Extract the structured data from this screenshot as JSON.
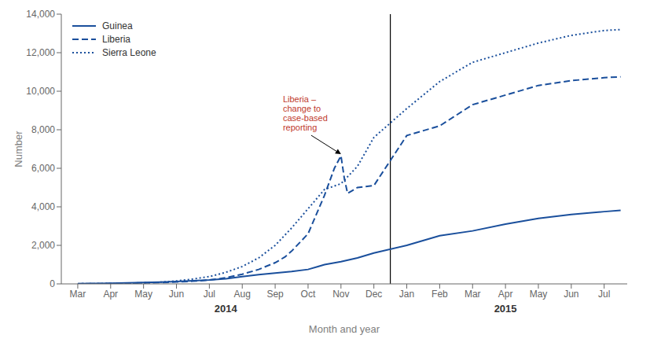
{
  "chart_data": {
    "type": "line",
    "x_label": "Month and year",
    "y_label": "Number",
    "series": [
      {
        "name": "Guinea",
        "color": "#1a4f9c",
        "line_style": "solid",
        "x": [
          0,
          0.5,
          1,
          1.5,
          2,
          2.5,
          3,
          3.5,
          4,
          4.5,
          5,
          5.5,
          6,
          6.5,
          7,
          7.3,
          7.5,
          8,
          8.5,
          9,
          10,
          11,
          12,
          13,
          14,
          15,
          16,
          16.5
        ],
        "values": [
          10,
          20,
          30,
          50,
          70,
          90,
          120,
          160,
          200,
          270,
          380,
          480,
          560,
          640,
          750,
          900,
          1000,
          1150,
          1350,
          1600,
          2000,
          2500,
          2750,
          3100,
          3400,
          3600,
          3750,
          3820
        ]
      },
      {
        "name": "Liberia",
        "color": "#1a4f9c",
        "line_style": "dashed",
        "x": [
          0,
          0.5,
          1,
          1.5,
          2,
          2.5,
          3,
          3.5,
          4,
          4.5,
          5,
          5.5,
          6,
          6.3,
          6.5,
          7,
          7.3,
          7.5,
          7.8,
          8.0,
          8.1,
          8.2,
          8.5,
          9,
          10,
          11,
          12,
          13,
          14,
          15,
          16,
          16.5
        ],
        "values": [
          5,
          10,
          20,
          30,
          50,
          70,
          100,
          140,
          200,
          320,
          500,
          750,
          1100,
          1400,
          1700,
          2600,
          3800,
          4600,
          6000,
          6650,
          5500,
          4700,
          5000,
          5100,
          7700,
          8200,
          9300,
          9800,
          10300,
          10550,
          10700,
          10750
        ]
      },
      {
        "name": "Sierra Leone",
        "color": "#1a4f9c",
        "line_style": "dotted",
        "x": [
          0,
          0.5,
          1,
          1.5,
          2,
          2.5,
          3,
          3.5,
          4,
          4.5,
          5,
          5.5,
          6,
          6.5,
          7,
          7.5,
          8,
          8.5,
          9,
          10,
          11,
          12,
          13,
          14,
          15,
          16,
          16.5
        ],
        "values": [
          5,
          10,
          20,
          30,
          55,
          90,
          150,
          250,
          380,
          600,
          900,
          1350,
          2000,
          2900,
          3900,
          4900,
          5200,
          6100,
          7600,
          9100,
          10500,
          11500,
          12000,
          12500,
          12900,
          13150,
          13200
        ]
      }
    ],
    "xlim": [
      -0.5,
      16.7
    ],
    "xticks": [
      {
        "value": 0,
        "label": "Mar"
      },
      {
        "value": 1,
        "label": "Apr"
      },
      {
        "value": 2,
        "label": "May"
      },
      {
        "value": 3,
        "label": "Jun"
      },
      {
        "value": 4,
        "label": "Jul"
      },
      {
        "value": 5,
        "label": "Aug"
      },
      {
        "value": 6,
        "label": "Sep"
      },
      {
        "value": 7,
        "label": "Oct"
      },
      {
        "value": 8,
        "label": "Nov"
      },
      {
        "value": 9,
        "label": "Dec"
      },
      {
        "value": 10,
        "label": "Jan"
      },
      {
        "value": 11,
        "label": "Feb"
      },
      {
        "value": 12,
        "label": "Mar"
      },
      {
        "value": 13,
        "label": "Apr"
      },
      {
        "value": 14,
        "label": "May"
      },
      {
        "value": 15,
        "label": "Jun"
      },
      {
        "value": 16,
        "label": "Jul"
      }
    ],
    "ylim": [
      0,
      14000
    ],
    "yticks": [
      0,
      {
        "value": 2000,
        "label": "2,000"
      },
      {
        "value": 4000,
        "label": "4,000"
      },
      {
        "value": 6000,
        "label": "6,000"
      },
      {
        "value": 8000,
        "label": "8,000"
      },
      {
        "value": 10000,
        "label": "10,000"
      },
      {
        "value": 12000,
        "label": "12,000"
      },
      {
        "value": 14000,
        "label": "14,000"
      }
    ],
    "grid": false,
    "legend": "upper left",
    "annotations": [
      {
        "text": "Liberia –\nchange to\ncase-based\nreporting",
        "x": 8.05,
        "y": 6650,
        "color": "#c0392b"
      }
    ],
    "x_group_labels": [
      {
        "label": "2014",
        "x": 4.5
      },
      {
        "label": "2015",
        "x": 13.0
      }
    ],
    "vlines": [
      9.5
    ]
  }
}
